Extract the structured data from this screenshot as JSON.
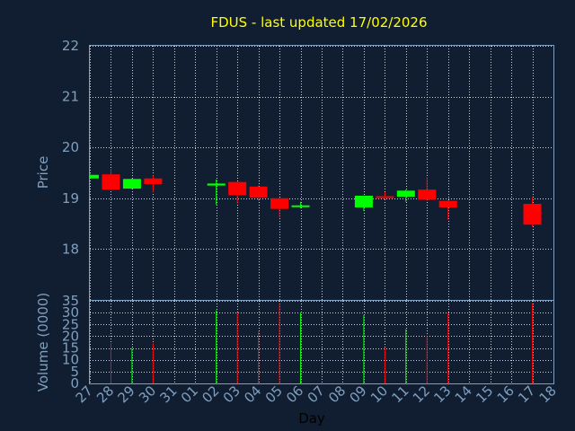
{
  "chart_data": {
    "type": "candlestick",
    "title": "FDUS - last updated 17/02/2026",
    "xlabel": "Day",
    "ylabel_price": "Price",
    "ylabel_volume": "Volume (0000)",
    "x_ticks": [
      "27",
      "28",
      "29",
      "30",
      "31",
      "01",
      "02",
      "03",
      "04",
      "05",
      "06",
      "07",
      "08",
      "09",
      "10",
      "11",
      "12",
      "13",
      "14",
      "15",
      "16",
      "17",
      "18"
    ],
    "price_ylim": [
      17.0,
      22.0
    ],
    "price_ticks": [
      18,
      19,
      20,
      21,
      22
    ],
    "volume_ylim": [
      0,
      35
    ],
    "volume_ticks": [
      0,
      5,
      10,
      15,
      20,
      25,
      30,
      35
    ],
    "grid": true,
    "colors": {
      "up": "#00ff00",
      "down": "#ff0000",
      "background": "#111e31",
      "title": "#ffff00",
      "axis_text": "#7f9fbf",
      "grid": "#ffffff",
      "frame": "#7f9fbf"
    },
    "candles": [
      {
        "x": "27",
        "open": 19.39,
        "high": 19.48,
        "low": 19.39,
        "close": 19.46,
        "volume": 0
      },
      {
        "x": "28",
        "open": 19.47,
        "high": 19.58,
        "low": 19.16,
        "close": 19.17,
        "volume": 17
      },
      {
        "x": "29",
        "open": 19.19,
        "high": 19.39,
        "low": 19.18,
        "close": 19.38,
        "volume": 15
      },
      {
        "x": "30",
        "open": 19.39,
        "high": 19.45,
        "low": 19.12,
        "close": 19.28,
        "volume": 17
      },
      {
        "x": "02",
        "open": 19.25,
        "high": 19.37,
        "low": 18.87,
        "close": 19.29,
        "volume": 31
      },
      {
        "x": "03",
        "open": 19.32,
        "high": 19.33,
        "low": 18.9,
        "close": 19.06,
        "volume": 30
      },
      {
        "x": "04",
        "open": 19.23,
        "high": 19.25,
        "low": 18.95,
        "close": 19.01,
        "volume": 22
      },
      {
        "x": "05",
        "open": 19.0,
        "high": 19.01,
        "low": 18.62,
        "close": 18.79,
        "volume": 34
      },
      {
        "x": "06",
        "open": 18.84,
        "high": 18.93,
        "low": 18.8,
        "close": 18.86,
        "volume": 30
      },
      {
        "x": "09",
        "open": 18.82,
        "high": 19.05,
        "low": 18.75,
        "close": 19.05,
        "volume": 29
      },
      {
        "x": "10",
        "open": 19.04,
        "high": 19.12,
        "low": 19.0,
        "close": 19.01,
        "volume": 15
      },
      {
        "x": "11",
        "open": 19.03,
        "high": 19.17,
        "low": 18.93,
        "close": 19.15,
        "volume": 23
      },
      {
        "x": "12",
        "open": 19.17,
        "high": 19.41,
        "low": 18.97,
        "close": 18.97,
        "volume": 20
      },
      {
        "x": "13",
        "open": 18.95,
        "high": 18.96,
        "low": 18.58,
        "close": 18.82,
        "volume": 30
      },
      {
        "x": "17",
        "open": 18.89,
        "high": 19.02,
        "low": 18.44,
        "close": 18.48,
        "volume": 34
      }
    ]
  }
}
